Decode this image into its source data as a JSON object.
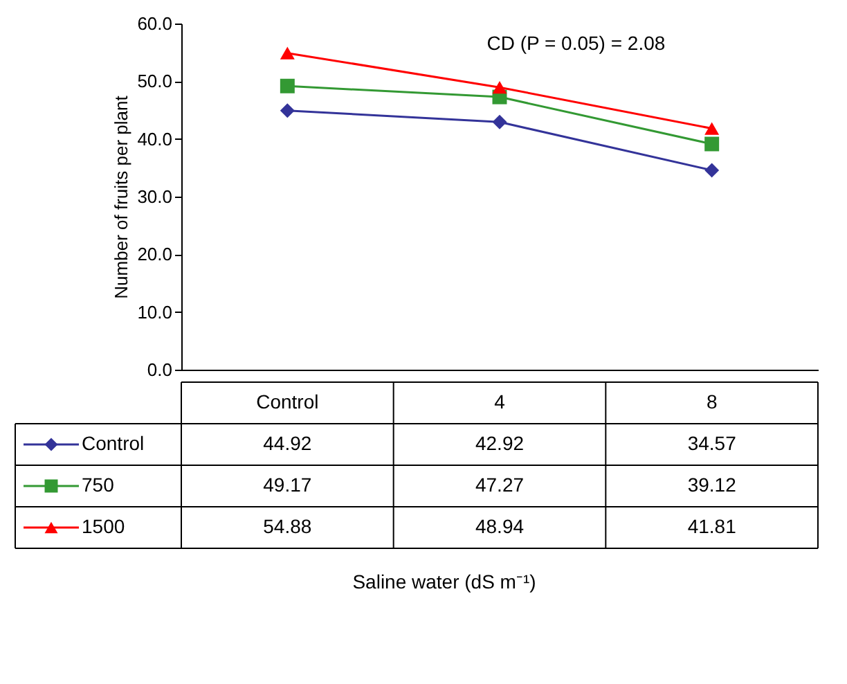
{
  "chart_data": {
    "type": "line",
    "categories": [
      "Control",
      "4",
      "8"
    ],
    "series": [
      {
        "name": "Control",
        "color": "#333399",
        "marker": "diamond",
        "values": [
          44.92,
          42.92,
          34.57
        ]
      },
      {
        "name": "750",
        "color": "#339933",
        "marker": "square",
        "values": [
          49.17,
          47.27,
          39.12
        ]
      },
      {
        "name": "1500",
        "color": "#ff0000",
        "marker": "triangle",
        "values": [
          54.88,
          48.94,
          41.81
        ]
      }
    ],
    "ylim": [
      0,
      60
    ],
    "yticks": [
      {
        "value": 0,
        "label": "0.0"
      },
      {
        "value": 10,
        "label": "10.0"
      },
      {
        "value": 20,
        "label": "20.0"
      },
      {
        "value": 30,
        "label": "30.0"
      },
      {
        "value": 40,
        "label": "40.0"
      },
      {
        "value": 50,
        "label": "50.0"
      },
      {
        "value": 60,
        "label": "60.0"
      }
    ],
    "ylabel": "Number of fruits per plant",
    "annotations": [
      "CD (P = 0.05) = 2.08",
      "Saline water (dS m⁻¹)"
    ],
    "data_labels": true,
    "legend": "bottom left",
    "grid": false,
    "line_style": "solid"
  }
}
